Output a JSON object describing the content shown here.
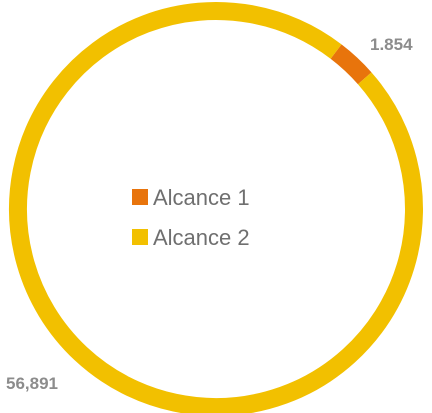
{
  "chart_data": {
    "type": "pie",
    "variant": "donut",
    "series": [
      {
        "name": "Alcance 1",
        "value": 1.854,
        "label": "1.854",
        "color": "#e8740c"
      },
      {
        "name": "Alcance 2",
        "value": 56.891,
        "label": "56,891",
        "color": "#f2c000"
      }
    ],
    "legend": {
      "position": "center",
      "entries": [
        "Alcance 1",
        "Alcance 2"
      ]
    },
    "title": ""
  }
}
